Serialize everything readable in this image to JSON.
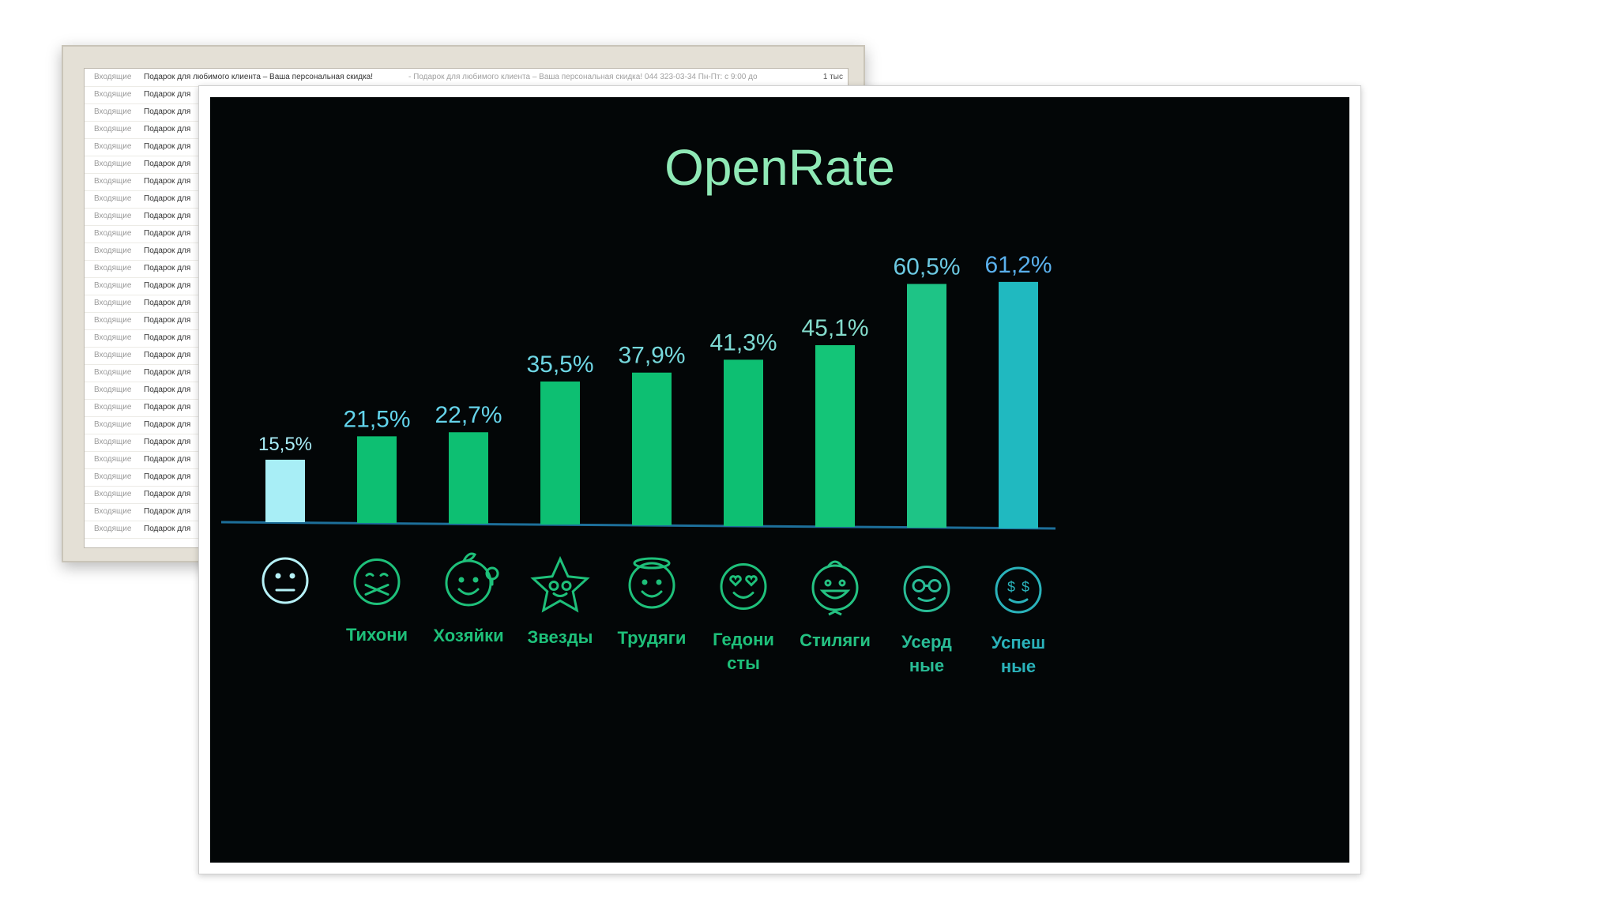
{
  "email_list": {
    "first_row": {
      "folder": "Входящие",
      "subject": "Подарок для любимого клиента – Ваша персональная скидка!",
      "preview": "- Подарок для любимого клиента – Ваша персональная скидка! 044 323-03-34 Пн-Пт: с 9:00 до",
      "count": "1 тыс"
    },
    "rows": [
      {
        "folder": "Входящие",
        "subject": "Подарок для"
      },
      {
        "folder": "Входящие",
        "subject": "Подарок для"
      },
      {
        "folder": "Входящие",
        "subject": "Подарок для"
      },
      {
        "folder": "Входящие",
        "subject": "Подарок для"
      },
      {
        "folder": "Входящие",
        "subject": "Подарок для"
      },
      {
        "folder": "Входящие",
        "subject": "Подарок для"
      },
      {
        "folder": "Входящие",
        "subject": "Подарок для"
      },
      {
        "folder": "Входящие",
        "subject": "Подарок для"
      },
      {
        "folder": "Входящие",
        "subject": "Подарок для"
      },
      {
        "folder": "Входящие",
        "subject": "Подарок для"
      },
      {
        "folder": "Входящие",
        "subject": "Подарок для"
      },
      {
        "folder": "Входящие",
        "subject": "Подарок для"
      },
      {
        "folder": "Входящие",
        "subject": "Подарок для"
      },
      {
        "folder": "Входящие",
        "subject": "Подарок для"
      },
      {
        "folder": "Входящие",
        "subject": "Подарок для"
      },
      {
        "folder": "Входящие",
        "subject": "Подарок для"
      },
      {
        "folder": "Входящие",
        "subject": "Подарок для"
      },
      {
        "folder": "Входящие",
        "subject": "Подарок для"
      },
      {
        "folder": "Входящие",
        "subject": "Подарок для"
      },
      {
        "folder": "Входящие",
        "subject": "Подарок для"
      },
      {
        "folder": "Входящие",
        "subject": "Подарок для"
      },
      {
        "folder": "Входящие",
        "subject": "Подарок для"
      },
      {
        "folder": "Входящие",
        "subject": "Подарок для"
      },
      {
        "folder": "Входящие",
        "subject": "Подарок для"
      },
      {
        "folder": "Входящие",
        "subject": "Подарок для"
      },
      {
        "folder": "Входящие",
        "subject": "Подарок для"
      }
    ]
  },
  "chart_data": {
    "type": "bar",
    "title": "OpenRate",
    "xlabel": "",
    "ylabel": "",
    "ylim": [
      0,
      65
    ],
    "grid": false,
    "categories": [
      "",
      "Тихони",
      "Хозяйки",
      "Звезды",
      "Трудяги",
      "Гедони сты",
      "Стиляги",
      "Усерд ные",
      "Успеш ные"
    ],
    "values": [
      15.5,
      21.5,
      22.7,
      35.5,
      37.9,
      41.3,
      45.1,
      60.5,
      61.2
    ],
    "data_labels": [
      "15,5%",
      "21,5%",
      "22,7%",
      "35,5%",
      "37,9%",
      "41,3%",
      "45,1%",
      "60,5%",
      "61,2%"
    ],
    "category_icons": [
      "neutral-face-icon",
      "taped-mouth-face-icon",
      "face-with-leaf-and-lightbulb-icon",
      "star-face-icon",
      "halo-face-icon",
      "heart-eyes-face-icon",
      "face-with-bowtie-icon",
      "glasses-face-icon",
      "dollar-eyes-face-icon"
    ],
    "bar_colors": [
      "#a8eef6",
      "#0dbf72",
      "#0dbf72",
      "#0dbf72",
      "#0dbf72",
      "#0dbf72",
      "#14c578",
      "#1ec486",
      "#20b9c0"
    ],
    "icon_colors": [
      "#b6f1f7",
      "#1ec07a",
      "#1ec07a",
      "#1ec07a",
      "#1ec07a",
      "#1ec07a",
      "#24c282",
      "#29bc96",
      "#2ab2ba"
    ],
    "label_colors": [
      "#a8ecf6",
      "#62d4ec",
      "#66d4eb",
      "#6ed6e4",
      "#76d8dc",
      "#7edad4",
      "#84dccc",
      "#6cc9e2",
      "#5ab0ec"
    ],
    "baseline_color": "#1d6f9a"
  }
}
